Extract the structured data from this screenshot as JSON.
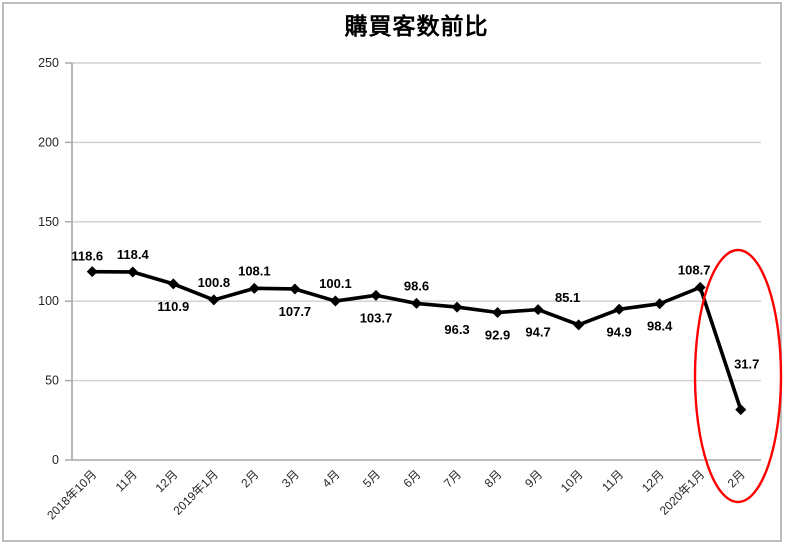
{
  "chart_data": {
    "type": "line",
    "title": "購買客数前比",
    "categories": [
      "2018年10月",
      "11月",
      "12月",
      "2019年1月",
      "2月",
      "3月",
      "4月",
      "5月",
      "6月",
      "7月",
      "8月",
      "9月",
      "10月",
      "11月",
      "12月",
      "2020年1月",
      "2月"
    ],
    "values": [
      118.6,
      118.4,
      110.9,
      100.8,
      108.1,
      107.7,
      100.1,
      103.7,
      98.6,
      96.3,
      92.9,
      94.7,
      85.1,
      94.9,
      98.4,
      108.7,
      31.7
    ],
    "data_labels": [
      "118.6",
      "118.4",
      "110.9",
      "100.8",
      "108.1",
      "107.7",
      "100.1",
      "103.7",
      "98.6",
      "96.3",
      "92.9",
      "94.7",
      "85.1",
      "94.9",
      "98.4",
      "108.7",
      "31.7"
    ],
    "label_positions": [
      "above",
      "above",
      "below",
      "above",
      "above",
      "below",
      "above",
      "below",
      "above",
      "below",
      "below",
      "below",
      "above",
      "below",
      "below",
      "above",
      "above"
    ],
    "label_offsets": {
      "0": [
        -5,
        2
      ],
      "12": [
        -11,
        -10
      ],
      "15": [
        -6,
        0
      ],
      "16": [
        6,
        -28
      ]
    },
    "xlabel": "",
    "ylabel": "",
    "ylim": [
      0,
      250
    ],
    "yticks": [
      0,
      50,
      100,
      150,
      200,
      250
    ],
    "ytick_labels": [
      "0",
      "50",
      "100",
      "150",
      "200",
      "250"
    ],
    "grid": "horizontal",
    "legend": "none",
    "marker": "diamond",
    "annotation": {
      "shape": "ellipse",
      "color": "#ff0000",
      "note": "red ellipse highlighting the 2020年2月 drop to 31.7"
    },
    "colors": {
      "line": "#000000",
      "marker": "#000000",
      "grid": "#cfcfcf",
      "axis": "#a6a6a6",
      "tick_text": "#262626",
      "data_label": "#000000",
      "border": "#bdbdbd",
      "background": "#ffffff",
      "annotation": "#ff0000"
    }
  }
}
